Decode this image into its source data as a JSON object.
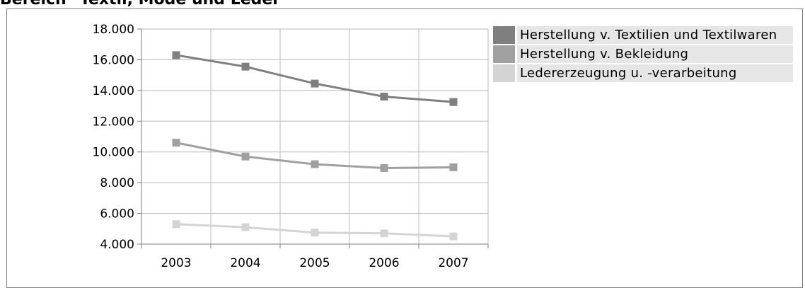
{
  "chart_data": {
    "type": "line",
    "title": "Bereich \"Textil, Mode und Leder\"",
    "categories": [
      "2003",
      "2004",
      "2005",
      "2006",
      "2007"
    ],
    "ylim": [
      4000,
      18000
    ],
    "yticks": [
      4000,
      6000,
      8000,
      10000,
      12000,
      14000,
      16000,
      18000
    ],
    "ytick_labels": [
      "4.000",
      "6.000",
      "8.000",
      "10.000",
      "12.000",
      "14.000",
      "16.000",
      "18.000"
    ],
    "grid": true,
    "legend_position": "right",
    "series": [
      {
        "name": "Herstellung v. Textilien und Textilwaren",
        "color": "#7f7f7f",
        "values": [
          16300,
          15550,
          14450,
          13600,
          13250
        ]
      },
      {
        "name": "Herstellung v. Bekleidung",
        "color": "#a0a0a0",
        "values": [
          10600,
          9700,
          9200,
          8950,
          9000
        ]
      },
      {
        "name": "Ledererzeugung u. -verarbeitung",
        "color": "#d4d4d4",
        "values": [
          5300,
          5100,
          4750,
          4700,
          4500
        ]
      }
    ]
  }
}
